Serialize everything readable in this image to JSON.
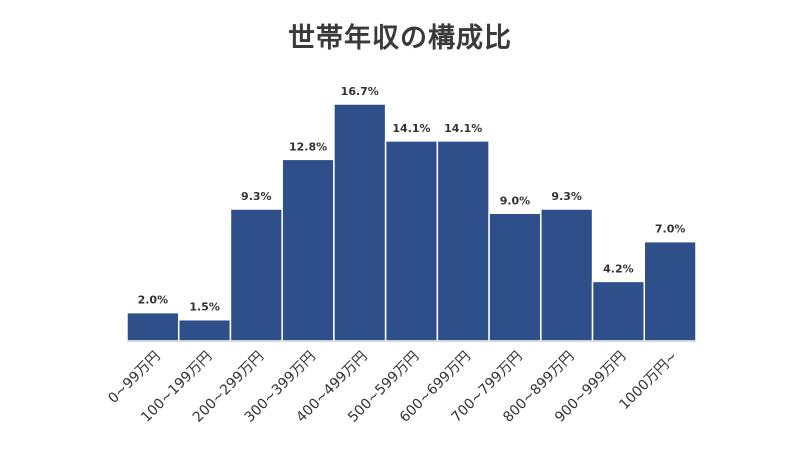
{
  "chart_data": {
    "type": "bar",
    "title": "世帯年収の構成比",
    "categories": [
      "0~99万円",
      "100~199万円",
      "200~299万円",
      "300~399万円",
      "400~499万円",
      "500~599万円",
      "600~699万円",
      "700~799万円",
      "800~899万円",
      "900~999万円",
      "1000万円~"
    ],
    "values": [
      2.0,
      1.5,
      9.3,
      12.8,
      16.7,
      14.1,
      14.1,
      9.0,
      9.3,
      4.2,
      7.0
    ],
    "value_labels": [
      "2.0%",
      "1.5%",
      "9.3%",
      "12.8%",
      "16.7%",
      "14.1%",
      "14.1%",
      "9.0%",
      "9.3%",
      "4.2%",
      "7.0%"
    ],
    "ylim": [
      0,
      16.7
    ],
    "grid": false,
    "bar_color": "#2E4F8A"
  }
}
